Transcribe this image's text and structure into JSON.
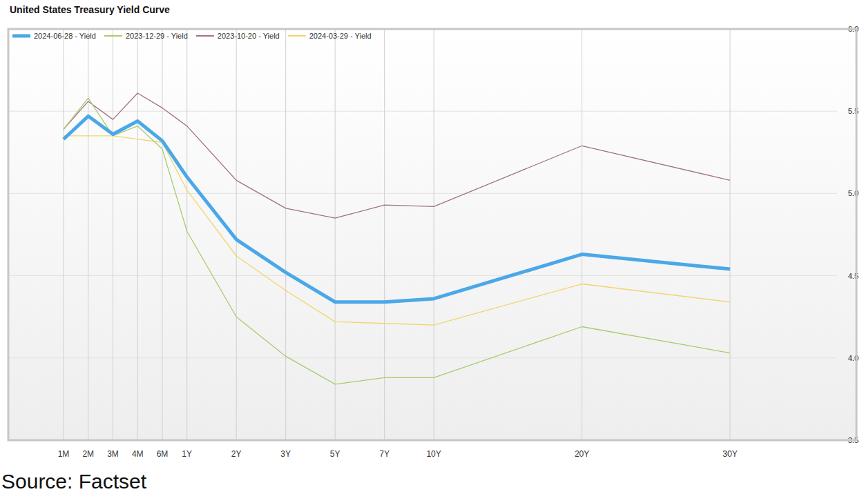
{
  "chart_data": {
    "type": "line",
    "title": "United States Treasury Yield Curve",
    "source": "Source: Factset",
    "categories": [
      "1M",
      "2M",
      "3M",
      "4M",
      "6M",
      "1Y",
      "2Y",
      "3Y",
      "5Y",
      "7Y",
      "10Y",
      "20Y",
      "30Y"
    ],
    "series": [
      {
        "name": "2024-06-28 - Yield",
        "color": "#4aa8e8",
        "values": [
          5.33,
          5.47,
          5.36,
          5.44,
          5.32,
          5.1,
          4.72,
          4.52,
          4.34,
          4.34,
          4.36,
          4.63,
          4.54
        ]
      },
      {
        "name": "2023-12-29 - Yield",
        "color": "#a8cc6a",
        "values": [
          5.39,
          5.58,
          5.35,
          5.41,
          5.27,
          4.77,
          4.25,
          4.01,
          3.84,
          3.88,
          3.88,
          4.19,
          4.03
        ]
      },
      {
        "name": "2023-10-20 - Yield",
        "color": "#a07088",
        "values": [
          5.39,
          5.56,
          5.45,
          5.61,
          5.52,
          5.41,
          5.08,
          4.91,
          4.85,
          4.93,
          4.92,
          5.29,
          5.08
        ]
      },
      {
        "name": "2024-03-29 - Yield",
        "color": "#f2d56a",
        "values": [
          5.35,
          5.35,
          5.35,
          5.33,
          5.31,
          5.02,
          4.62,
          4.41,
          4.22,
          4.21,
          4.2,
          4.45,
          4.34
        ]
      }
    ],
    "ylim": [
      3.5,
      6.0
    ],
    "yticks": [
      3.5,
      {
        "value": 4,
        "label": "4.0"
      },
      4.5,
      {
        "value": 5,
        "label": "5.0"
      },
      5.5,
      {
        "value": 6,
        "label": "6.0"
      }
    ],
    "grid": true,
    "legend": "upper left"
  }
}
